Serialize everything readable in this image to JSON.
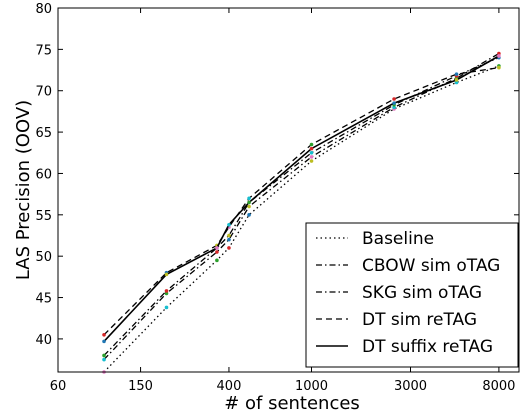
{
  "chart_data": {
    "type": "line",
    "xscale": "log",
    "xlabel": "# of sentences",
    "ylabel": "LAS Precision (OOV)",
    "xlim": [
      60,
      10000
    ],
    "ylim": [
      36,
      80
    ],
    "xticks": [
      {
        "value": 60,
        "label": "60"
      },
      {
        "value": 150,
        "label": "150"
      },
      {
        "value": 400,
        "label": "400"
      },
      {
        "value": 1000,
        "label": "1000"
      },
      {
        "value": 3000,
        "label": "3000"
      },
      {
        "value": 8000,
        "label": "8000"
      }
    ],
    "yticks": [
      40,
      45,
      50,
      55,
      60,
      65,
      70,
      75,
      80
    ],
    "x": [
      100,
      200,
      350,
      400,
      500,
      1000,
      2500,
      5000,
      8000
    ],
    "series": [
      {
        "name": "Baseline",
        "style": "dotted",
        "color": "#000000",
        "values": [
          36.0,
          43.8,
          49.5,
          51.0,
          55.0,
          61.5,
          67.8,
          71.0,
          73.0
        ]
      },
      {
        "name": "CBOW sim oTAG",
        "style": "dashdot",
        "color": "#000000",
        "values": [
          37.5,
          45.5,
          50.5,
          52.0,
          56.0,
          62.0,
          68.0,
          71.5,
          74.5
        ]
      },
      {
        "name": "SKG sim oTAG",
        "style": "dashdot",
        "color": "#000000",
        "values": [
          38.0,
          45.8,
          51.0,
          52.5,
          56.5,
          62.5,
          68.3,
          71.8,
          74.0
        ]
      },
      {
        "name": "DT sim reTAG",
        "style": "dashed",
        "color": "#000000",
        "values": [
          40.5,
          48.0,
          51.3,
          53.5,
          57.0,
          63.5,
          69.0,
          72.0,
          72.8
        ]
      },
      {
        "name": "DT suffix reTAG",
        "style": "solid",
        "color": "#000000",
        "values": [
          39.7,
          47.8,
          51.0,
          53.8,
          56.5,
          63.0,
          68.5,
          71.3,
          74.2
        ]
      }
    ],
    "marker_colors": [
      "#e377c2",
      "#17becf",
      "#2ca02c",
      "#d62728",
      "#1f77b4",
      "#bcbd22"
    ],
    "grid": false,
    "legend_position": "lower-right"
  }
}
